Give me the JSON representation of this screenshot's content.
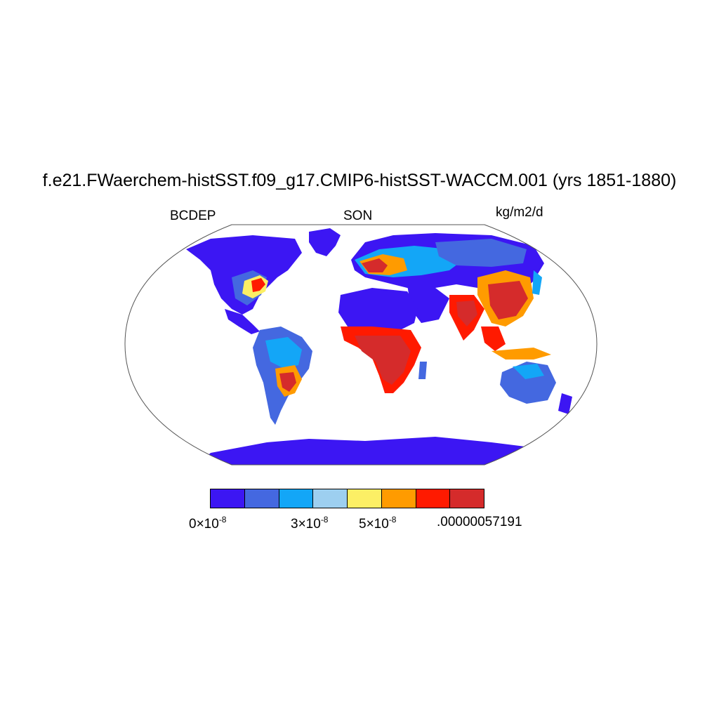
{
  "title": "f.e21.FWaerchem-histSST.f09_g17.CMIP6-histSST-WACCM.001 (yrs 1851-1880)",
  "left_label": "BCDEP",
  "center_label": "SON",
  "units_label": "kg/m2/d",
  "colorbar": {
    "colors": [
      "#3c16f3",
      "#4468e0",
      "#13a6f7",
      "#9dcff0",
      "#fcef65",
      "#ff9b00",
      "#ff1a00",
      "#d52b2b"
    ],
    "tick_labels": [
      {
        "mantissa": "0",
        "times": "×10",
        "exp": "-8"
      },
      {
        "mantissa": "3",
        "times": "×10",
        "exp": "-8"
      },
      {
        "mantissa": "5",
        "times": "×10",
        "exp": "-8"
      },
      {
        "text": ".00000057191"
      }
    ]
  }
}
